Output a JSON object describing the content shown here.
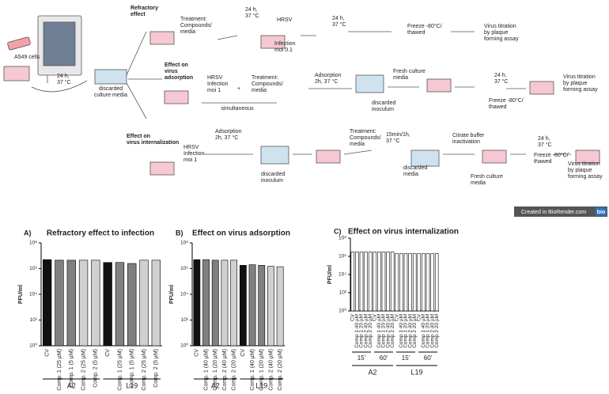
{
  "diagram": {
    "labels": [
      [
        "A549 cells"
      ],
      [
        "24 h,",
        "37 °C"
      ],
      [
        "discarded",
        "culture media"
      ],
      [
        "Refractory",
        "effect"
      ],
      [
        "Treatment:",
        "Compounds/",
        "media"
      ],
      [
        "24 h,",
        "37 °C"
      ],
      [
        "HRSV"
      ],
      [
        "Infection",
        "moi 0.1"
      ],
      [
        "24 h,",
        "37 °C"
      ],
      [
        "Freeze -80°C/",
        "thawed"
      ],
      [
        "Virus titration",
        "by plaque",
        "forming assay"
      ],
      [
        "Effect on",
        "virus",
        "adsorption"
      ],
      [
        "HRSV",
        "Infection",
        "moi 1"
      ],
      [
        "+"
      ],
      [
        "Treatment:",
        "Compounds/",
        "media"
      ],
      [
        "simultaneous"
      ],
      [
        "Adsorption",
        "2h, 37 °C"
      ],
      [
        "discarded",
        "inoculum"
      ],
      [
        "Fresh culture",
        "media"
      ],
      [
        "24 h,",
        "37 °C"
      ],
      [
        "Freeze -80°C/",
        "thawed"
      ],
      [
        "Virus titration",
        "by plaque",
        "forming assay"
      ],
      [
        "Effect on",
        "virus internalization"
      ],
      [
        "HRSV",
        "Infection",
        "moi 1"
      ],
      [
        "Adsorption",
        "2h, 37 °C"
      ],
      [
        "discarded",
        "inoculum"
      ],
      [
        "Treatment:",
        "Compounds/",
        "media"
      ],
      [
        "15min/1h,",
        "37 °C"
      ],
      [
        "Citrate buffer",
        "inactivation"
      ],
      [
        "discarded",
        "media"
      ],
      [
        "Fresh culture",
        "media"
      ],
      [
        "24 h,",
        "37 °C"
      ],
      [
        "Freeze -80°C/",
        "thawed"
      ],
      [
        "Virus titration",
        "by plaque",
        "forming assay"
      ]
    ],
    "badge": {
      "text": "Created in BioRender.com",
      "logo": "bio"
    }
  },
  "chart_data": [
    {
      "type": "bar",
      "panel": "A)",
      "title": "Refractory effect to infection",
      "ylabel": "PFU/ml",
      "log_scale": true,
      "ylim": [
        1,
        100000000
      ],
      "yticks": [
        {
          "value": 1,
          "label": "10⁰"
        },
        {
          "value": 100,
          "label": "10²"
        },
        {
          "value": 10000,
          "label": "10⁴"
        },
        {
          "value": 1000000,
          "label": "10⁶"
        },
        {
          "value": 100000000,
          "label": "10⁸"
        }
      ],
      "categories": [
        "CV",
        "Comp. 1 (25 µM)",
        "Comp. 1 (5 µM)",
        "Comp. 2 (25 µM)",
        "Comp. 2 (5 µM)",
        "CV",
        "Comp. 1 (25 µM)",
        "Comp. 1 (5 µM)",
        "Comp. 2 (25 µM)",
        "Comp. 2 (5 µM)"
      ],
      "values": [
        5000000,
        4500000,
        4500000,
        4500000,
        4500000,
        3000000,
        3000000,
        2500000,
        4500000,
        4500000
      ],
      "colors": [
        "#111111",
        "#808080",
        "#808080",
        "#d0d0d0",
        "#d0d0d0",
        "#111111",
        "#808080",
        "#808080",
        "#d0d0d0",
        "#d0d0d0"
      ],
      "groups": [
        "A2",
        "L19"
      ]
    },
    {
      "type": "bar",
      "panel": "B)",
      "title": "Effect on virus adsorption",
      "ylabel": "PFU/ml",
      "log_scale": true,
      "ylim": [
        1,
        100000000
      ],
      "yticks": [
        {
          "value": 1,
          "label": "10⁰"
        },
        {
          "value": 100,
          "label": "10²"
        },
        {
          "value": 10000,
          "label": "10⁴"
        },
        {
          "value": 1000000,
          "label": "10⁶"
        },
        {
          "value": 100000000,
          "label": "10⁸"
        }
      ],
      "categories": [
        "CV",
        "Comp. 1 (40 µM)",
        "Comp. 1 (20 µM)",
        "Comp. 2 (40 µM)",
        "Comp. 2 (20 µM)",
        "CV",
        "Comp. 1 (40 µM)",
        "Comp. 1 (20 µM)",
        "Comp. 2 (40 µM)",
        "Comp. 2 (20 µM)"
      ],
      "values": [
        5000000,
        5000000,
        4500000,
        4500000,
        4500000,
        1800000,
        2000000,
        1800000,
        1500000,
        1400000
      ],
      "colors": [
        "#111111",
        "#808080",
        "#808080",
        "#d0d0d0",
        "#d0d0d0",
        "#111111",
        "#808080",
        "#808080",
        "#d0d0d0",
        "#d0d0d0"
      ],
      "groups": [
        "A2",
        "L19"
      ]
    },
    {
      "type": "bar",
      "panel": "C)",
      "title": "Effect on virus internalization",
      "ylabel": "PFU/ml",
      "log_scale": true,
      "ylim": [
        1,
        100000000
      ],
      "yticks": [
        {
          "value": 1,
          "label": "10⁰"
        },
        {
          "value": 100,
          "label": "10²"
        },
        {
          "value": 10000,
          "label": "10⁴"
        },
        {
          "value": 1000000,
          "label": "10⁶"
        },
        {
          "value": 100000000,
          "label": "10⁸"
        }
      ],
      "categories": [
        "CV",
        "Comp 1 40 µM",
        "Comp 1 20 µM",
        "Comp 2 40 µM",
        "Comp 2 20 µM",
        "CV",
        "Comp 1 40 µM",
        "Comp 1 20 µM",
        "Comp 2 40 µM",
        "Comp 2 20 µM",
        "CV",
        "Comp 1 40 µM",
        "Comp 1 20 µM",
        "Comp 2 40 µM",
        "Comp 2 20 µM",
        "CV",
        "Comp 1 40 µM",
        "Comp 1 20 µM",
        "Comp 2 40 µM",
        "Comp 2 20 µM"
      ],
      "values": [
        3000000,
        3000000,
        3000000,
        3000000,
        3000000,
        3000000,
        3000000,
        3000000,
        3000000,
        3000000,
        2000000,
        2000000,
        2000000,
        2000000,
        2000000,
        2000000,
        2000000,
        2000000,
        2000000,
        2000000
      ],
      "color": "#ffffff",
      "subgroups": [
        "15'",
        "60'",
        "15'",
        "60'"
      ],
      "groups": [
        "A2",
        "L19"
      ]
    }
  ]
}
